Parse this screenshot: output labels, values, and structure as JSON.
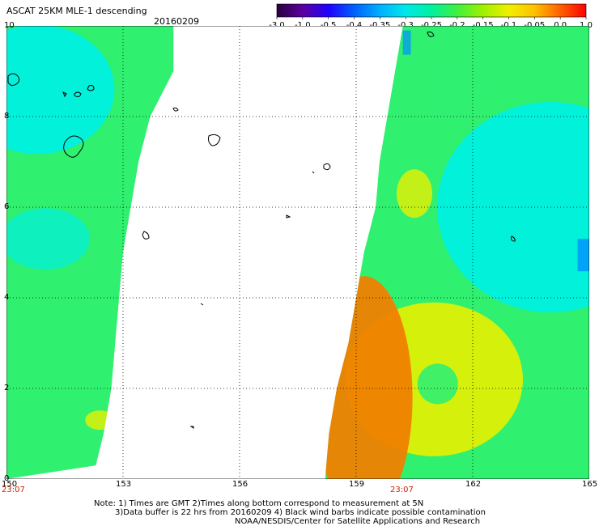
{
  "title": "ASCAT 25KM MLE-1 descending",
  "date": "20160209",
  "colorbar": {
    "labels": [
      "-3.0",
      "-1.0",
      "-0.5",
      "-0.4",
      "-0.35",
      "-0.3",
      "-0.25",
      "-0.2",
      "-0.15",
      "-0.1",
      "-0.05",
      "0.0",
      "1.0"
    ],
    "colors": [
      "#2a0040",
      "#5a00a0",
      "#2000ff",
      "#0060ff",
      "#00b0ff",
      "#00e8e8",
      "#00f0a0",
      "#40f040",
      "#a0f000",
      "#f0f000",
      "#ffc000",
      "#ff6000",
      "#ff0000"
    ]
  },
  "axes": {
    "x_ticks": [
      "150",
      "153",
      "156",
      "159",
      "162",
      "165"
    ],
    "y_ticks": [
      "0",
      "2",
      "4",
      "6",
      "8",
      "10"
    ]
  },
  "times": [
    "23:07",
    "23:07"
  ],
  "notes": [
    "Note: 1) Times are GMT 2)Times along bottom correspond to measurement at 5N",
    "3)Data buffer is 22 hrs from 20160209 4) Black wind barbs indicate possible contamination",
    "NOAA/NESDIS/Center for Satellite Applications and Research"
  ],
  "map_data": {
    "x_range": [
      150,
      165
    ],
    "y_range": [
      0,
      10
    ],
    "swath_colors": {
      "cyan": "#00f0e0",
      "green": "#30f070",
      "yellow": "#e8f000",
      "orange": "#f08000",
      "blue": "#0090ff"
    }
  }
}
